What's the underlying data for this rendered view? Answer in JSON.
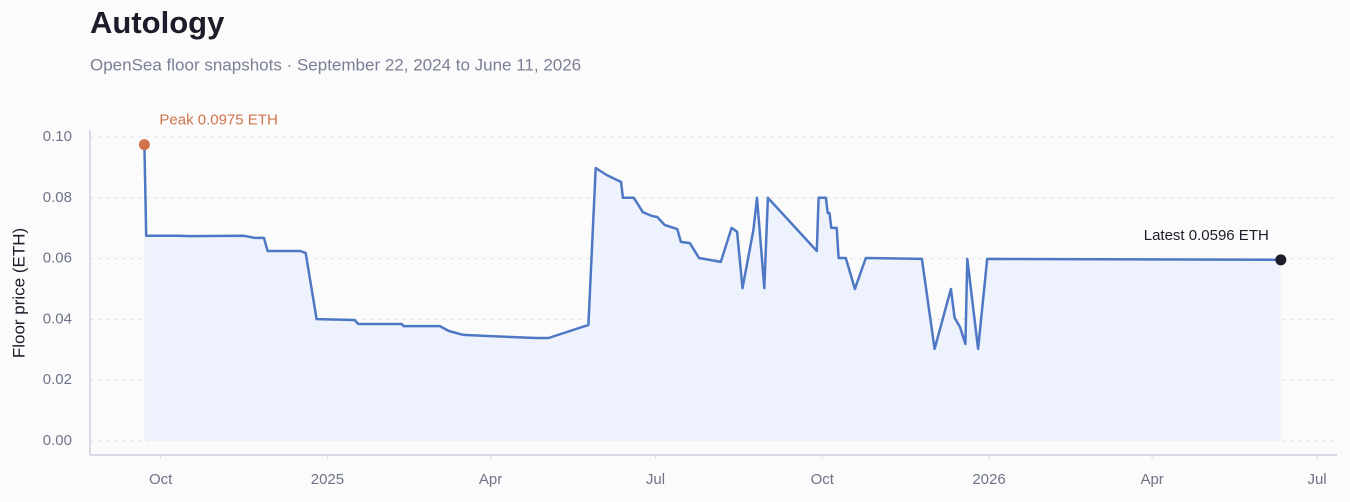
{
  "chart_data": {
    "type": "line",
    "title": "Autology",
    "subtitle": "OpenSea floor snapshots · September 22, 2024 to June 11, 2026",
    "y_label": "Floor price (ETH)",
    "color": "#4f78c4",
    "area_color": "#edf2fd",
    "grid": true,
    "x": [
      "2024-09-22",
      "2024-09-23",
      "2024-10-11",
      "2024-10-17",
      "2024-11-16",
      "2024-11-22",
      "2024-11-27",
      "2024-11-29",
      "2024-12-17",
      "2024-12-20",
      "2024-12-26",
      "2025-01-16",
      "2025-01-18",
      "2025-02-11",
      "2025-02-12",
      "2025-03-04",
      "2025-03-09",
      "2025-03-17",
      "2025-04-01",
      "2025-04-26",
      "2025-05-03",
      "2025-05-25",
      "2025-05-29",
      "2025-06-04",
      "2025-06-12",
      "2025-06-13",
      "2025-06-19",
      "2025-06-24",
      "2025-06-29",
      "2025-07-02",
      "2025-07-06",
      "2025-07-13",
      "2025-07-15",
      "2025-07-20",
      "2025-07-25",
      "2025-08-06",
      "2025-08-12",
      "2025-08-15",
      "2025-08-18",
      "2025-08-24",
      "2025-08-26",
      "2025-08-30",
      "2025-09-01",
      "2025-09-28",
      "2025-09-29",
      "2025-10-03",
      "2025-10-04",
      "2025-10-05",
      "2025-10-06",
      "2025-10-09",
      "2025-10-10",
      "2025-10-14",
      "2025-10-19",
      "2025-10-25",
      "2025-11-25",
      "2025-12-02",
      "2025-12-11",
      "2025-12-13",
      "2025-12-16",
      "2025-12-19",
      "2025-12-20",
      "2025-12-26",
      "2025-12-31",
      "2026-06-11"
    ],
    "values": [
      0.0975,
      0.0675,
      0.0675,
      0.0674,
      0.0675,
      0.0668,
      0.0668,
      0.0625,
      0.0625,
      0.0618,
      0.0401,
      0.0398,
      0.0385,
      0.0385,
      0.0378,
      0.0378,
      0.0362,
      0.0349,
      0.0345,
      0.0339,
      0.0339,
      0.0382,
      0.0898,
      0.0875,
      0.0852,
      0.08,
      0.08,
      0.0753,
      0.074,
      0.0737,
      0.0711,
      0.0697,
      0.0655,
      0.0651,
      0.0602,
      0.0589,
      0.0701,
      0.0688,
      0.0503,
      0.0694,
      0.08,
      0.0503,
      0.08,
      0.0625,
      0.08,
      0.08,
      0.075,
      0.075,
      0.0701,
      0.0701,
      0.0602,
      0.0602,
      0.05,
      0.0602,
      0.0599,
      0.0303,
      0.05,
      0.0405,
      0.0375,
      0.0319,
      0.0599,
      0.0303,
      0.0599,
      0.0596
    ],
    "xlim": [
      "2024-08-23",
      "2026-07-12"
    ],
    "xticks": [
      {
        "value": "2024-10-01",
        "label": "Oct"
      },
      {
        "value": "2025-01-01",
        "label": "2025"
      },
      {
        "value": "2025-04-01",
        "label": "Apr"
      },
      {
        "value": "2025-07-01",
        "label": "Jul"
      },
      {
        "value": "2025-10-01",
        "label": "Oct"
      },
      {
        "value": "2026-01-01",
        "label": "2026"
      },
      {
        "value": "2026-04-01",
        "label": "Apr"
      },
      {
        "value": "2026-07-01",
        "label": "Jul"
      }
    ],
    "ylim": [
      -0.0046,
      0.1023
    ],
    "yticks": [
      {
        "value": 0,
        "label": "0.00"
      },
      {
        "value": 0.02,
        "label": "0.02"
      },
      {
        "value": 0.04,
        "label": "0.04"
      },
      {
        "value": 0.06,
        "label": "0.06"
      },
      {
        "value": 0.08,
        "label": "0.08"
      },
      {
        "value": 0.1,
        "label": "0.10"
      }
    ],
    "annotations": [
      {
        "text": "Peak 0.0975 ETH",
        "point": 0,
        "color": "#d0734a"
      },
      {
        "text": "Latest 0.0596 ETH",
        "point": 63,
        "color": "#1c1c2a"
      }
    ]
  }
}
